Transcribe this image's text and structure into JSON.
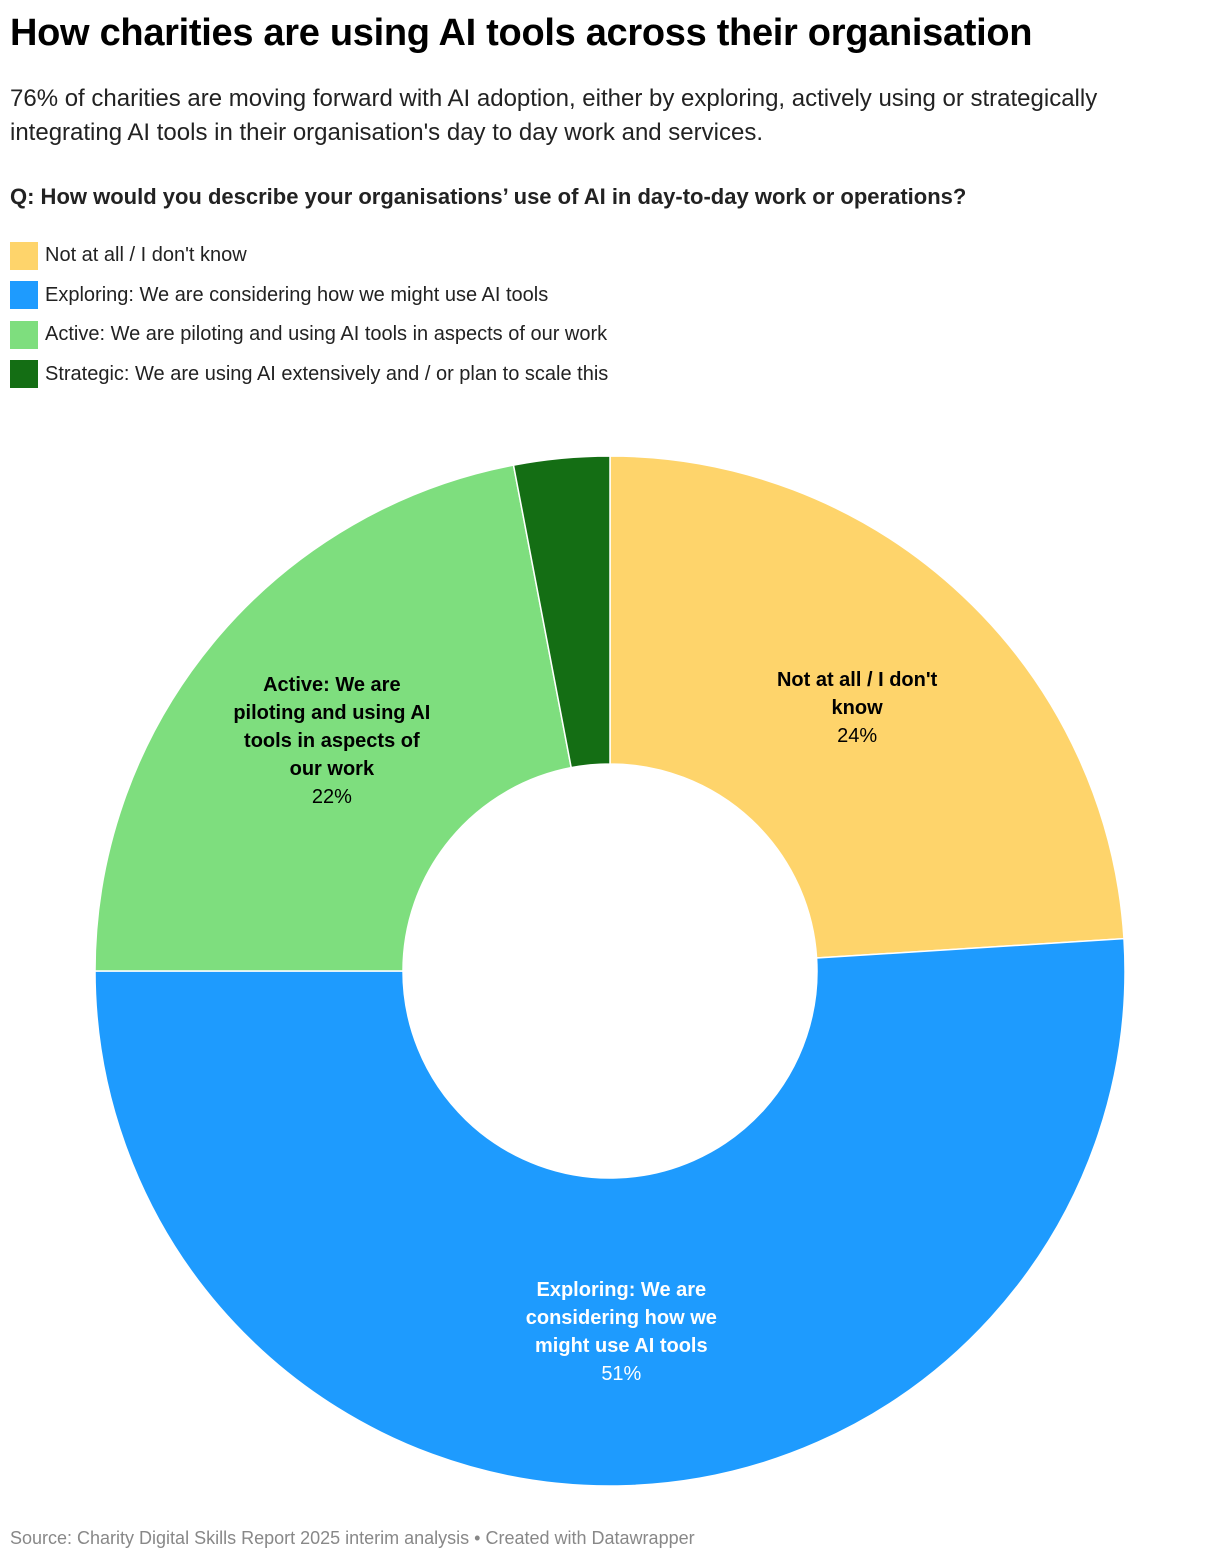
{
  "header": {
    "title": "How charities are using AI tools across their organisation",
    "subtitle": "76% of charities are moving forward with AI adoption, either by exploring, actively using or strategically integrating AI tools in their organisation's day to day work and services.",
    "question": "Q: How would you describe your organisations’ use of AI in day-to-day work or operations?"
  },
  "chart_data": {
    "type": "pie",
    "variant": "donut",
    "title": "How charities are using AI tools across their organisation",
    "legend_position": "top-left",
    "series": [
      {
        "name": "Not at all / I don't know",
        "value": 24,
        "label": "24%",
        "color": "#fed46b",
        "text_color": "#000000",
        "show_label": true
      },
      {
        "name": "Exploring: We are considering how we might use AI tools",
        "value": 51,
        "label": "51%",
        "color": "#1e9bfe",
        "text_color": "#ffffff",
        "show_label": true
      },
      {
        "name": "Active: We are piloting and using AI tools in aspects of our work",
        "value": 22,
        "label": "22%",
        "color": "#7ede7e",
        "text_color": "#000000",
        "show_label": true
      },
      {
        "name": "Strategic: We are using AI extensively and / or plan to scale this",
        "value": 3,
        "label": "3%",
        "color": "#146e14",
        "text_color": "#ffffff",
        "show_label": false
      }
    ]
  },
  "footer": {
    "source": "Source: Charity Digital Skills Report 2025 interim analysis • Created with Datawrapper"
  }
}
